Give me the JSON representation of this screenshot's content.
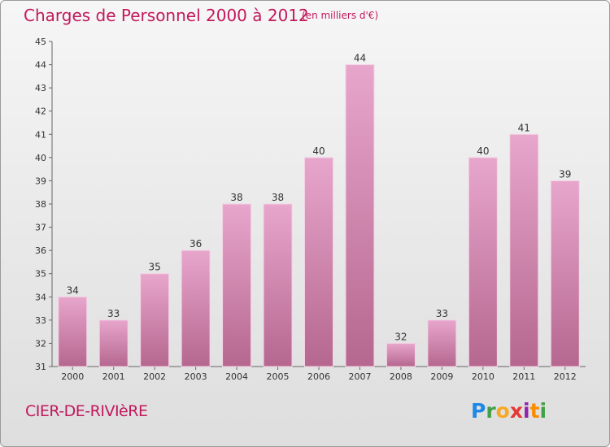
{
  "header": {
    "title": "Charges de Personnel 2000 à 2012",
    "subtitle": "(en milliers d'€)"
  },
  "footer": {
    "place": "CIER-DE-RIVIèRE",
    "logo": "Proxiti"
  },
  "colors": {
    "accent": "#c2185b",
    "bar_top": "#e8a6cc",
    "bar_bottom": "#b5678f"
  },
  "chart_data": {
    "type": "bar",
    "categories": [
      "2000",
      "2001",
      "2002",
      "2003",
      "2004",
      "2005",
      "2006",
      "2007",
      "2008",
      "2009",
      "2010",
      "2011",
      "2012"
    ],
    "values": [
      34,
      33,
      35,
      36,
      38,
      38,
      40,
      44,
      32,
      33,
      40,
      41,
      39
    ],
    "title": "Charges de Personnel 2000 à 2012",
    "subtitle": "(en milliers d'€)",
    "xlabel": "",
    "ylabel": "",
    "ylim": [
      31,
      45
    ],
    "yticks": [
      31,
      32,
      33,
      34,
      35,
      36,
      37,
      38,
      39,
      40,
      41,
      42,
      43,
      44,
      45
    ],
    "grid": false,
    "data_labels": true
  }
}
